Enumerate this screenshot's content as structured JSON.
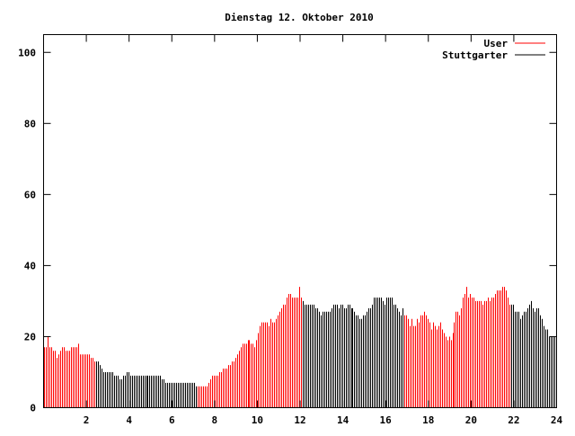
{
  "chart_data": {
    "type": "bar",
    "title": "Dienstag 12. Oktober 2010",
    "xlabel": "",
    "ylabel": "",
    "xlim": [
      0,
      24
    ],
    "ylim": [
      0,
      105
    ],
    "x_ticks": [
      "2",
      "4",
      "6",
      "8",
      "10",
      "12",
      "14",
      "16",
      "18",
      "20",
      "22",
      "24"
    ],
    "y_ticks": [
      "0",
      "20",
      "40",
      "60",
      "80",
      "100"
    ],
    "grid": false,
    "legend_position": "top-right",
    "x_step_hours": 0.0833,
    "series": [
      {
        "name": "User",
        "color": "#ff0000"
      },
      {
        "name": "Stuttgarter",
        "color": "#000000"
      }
    ],
    "segments": [
      {
        "series": "User",
        "from": 0,
        "to": 2.4
      },
      {
        "series": "Stuttgarter",
        "from": 2.4,
        "to": 7.2
      },
      {
        "series": "User",
        "from": 7.2,
        "to": 12.1
      },
      {
        "series": "Stuttgarter",
        "from": 12.1,
        "to": 16.8
      },
      {
        "series": "User",
        "from": 16.8,
        "to": 21.8
      },
      {
        "series": "Stuttgarter",
        "from": 21.8,
        "to": 24
      }
    ],
    "values": [
      17,
      17,
      20,
      17,
      17,
      16,
      16,
      14,
      15,
      16,
      17,
      17,
      16,
      16,
      16,
      17,
      17,
      17,
      17,
      18,
      15,
      15,
      15,
      15,
      15,
      15,
      14,
      14,
      13,
      13,
      13,
      12,
      11,
      10,
      10,
      10,
      10,
      10,
      10,
      9,
      9,
      9,
      8,
      8,
      9,
      9,
      10,
      10,
      9,
      9,
      9,
      9,
      9,
      9,
      9,
      9,
      9,
      9,
      9,
      9,
      9,
      9,
      9,
      9,
      9,
      9,
      8,
      8,
      7,
      7,
      7,
      7,
      7,
      7,
      7,
      7,
      7,
      7,
      7,
      7,
      7,
      7,
      7,
      7,
      7,
      6,
      6,
      6,
      6,
      6,
      6,
      6,
      7,
      8,
      9,
      9,
      9,
      9,
      10,
      10,
      11,
      11,
      11,
      12,
      12,
      13,
      13,
      14,
      15,
      16,
      17,
      18,
      18,
      18,
      19,
      19,
      18,
      18,
      17,
      19,
      21,
      23,
      24,
      24,
      24,
      24,
      23,
      25,
      24,
      24,
      25,
      26,
      27,
      28,
      29,
      29,
      31,
      32,
      32,
      31,
      31,
      31,
      31,
      34,
      31,
      30,
      29,
      29,
      29,
      29,
      29,
      29,
      28,
      28,
      27,
      26,
      27,
      27,
      27,
      27,
      27,
      28,
      29,
      29,
      29,
      28,
      29,
      29,
      28,
      28,
      29,
      29,
      28,
      28,
      27,
      26,
      26,
      25,
      25,
      26,
      26,
      27,
      28,
      28,
      29,
      31,
      31,
      31,
      31,
      31,
      30,
      29,
      31,
      31,
      31,
      31,
      29,
      29,
      28,
      27,
      26,
      28,
      26,
      26,
      25,
      23,
      25,
      23,
      23,
      25,
      24,
      26,
      26,
      27,
      26,
      25,
      24,
      22,
      24,
      23,
      22,
      23,
      24,
      22,
      21,
      20,
      19,
      20,
      19,
      21,
      24,
      27,
      27,
      26,
      28,
      31,
      32,
      34,
      31,
      32,
      31,
      31,
      30,
      30,
      30,
      30,
      29,
      30,
      30,
      31,
      30,
      31,
      31,
      32,
      33,
      33,
      33,
      34,
      34,
      33,
      31,
      29,
      29,
      29,
      27,
      27,
      27,
      25,
      26,
      27,
      27,
      28,
      29,
      30,
      28,
      27,
      28,
      28,
      26,
      25,
      23,
      22,
      22,
      20,
      20,
      20,
      20,
      20
    ]
  }
}
